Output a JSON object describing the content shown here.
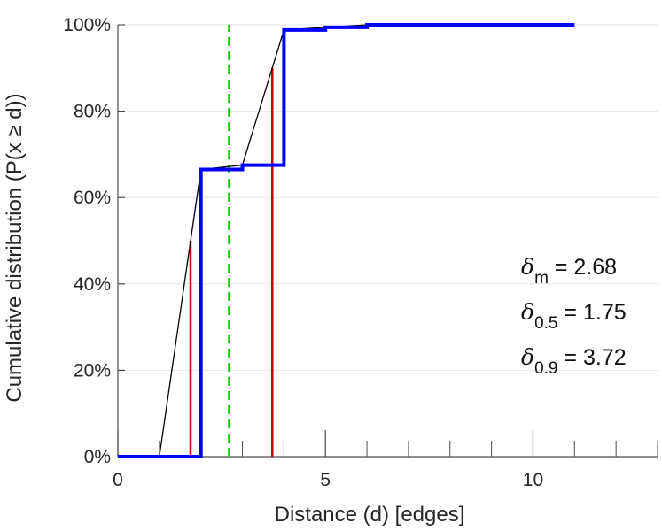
{
  "chart_data": {
    "type": "line",
    "title": "",
    "xlabel": "Distance (d) [edges]",
    "ylabel": "Cumulative distribution (P(x ≥ d))",
    "xlim": [
      0,
      13
    ],
    "ylim": [
      0,
      100
    ],
    "x_ticks": [
      0,
      5,
      10
    ],
    "x_tick_labels": [
      "0",
      "5",
      "10"
    ],
    "x_minor_ticks": [
      1,
      2,
      3,
      4,
      6,
      7,
      8,
      9,
      11,
      12,
      13
    ],
    "y_ticks": [
      0,
      20,
      40,
      60,
      80,
      100
    ],
    "y_tick_labels": [
      "0%",
      "20%",
      "40%",
      "60%",
      "80%",
      "100%"
    ],
    "grid": "horizontal",
    "series": [
      {
        "style": "step",
        "color": "#0000ff",
        "x": [
          0,
          2,
          2,
          3,
          3,
          4,
          4,
          5,
          5,
          6,
          6,
          11
        ],
        "y": [
          0,
          0,
          66.5,
          66.5,
          67.5,
          67.5,
          98.8,
          98.8,
          99.4,
          99.4,
          100,
          100
        ]
      },
      {
        "style": "line",
        "color": "#000000",
        "x": [
          1,
          2,
          3,
          4,
          5,
          6,
          11
        ],
        "y": [
          0,
          66.5,
          67.5,
          98.8,
          99.4,
          100,
          100
        ]
      }
    ],
    "reference_lines": [
      {
        "x": 2.68,
        "y_to": 100,
        "color": "#00cc00",
        "style": "dashed"
      },
      {
        "x": 1.75,
        "y_to": 50,
        "color": "#cc0000",
        "style": "solid"
      },
      {
        "x": 3.72,
        "y_to": 90,
        "color": "#cc0000",
        "style": "solid"
      }
    ],
    "annotations": [
      {
        "symbol": "δ",
        "subscript": "m",
        "text": " = 2.68"
      },
      {
        "symbol": "δ",
        "subscript": "0.5",
        "text": " = 1.75"
      },
      {
        "symbol": "δ",
        "subscript": "0.9",
        "text": " = 3.72"
      }
    ]
  }
}
